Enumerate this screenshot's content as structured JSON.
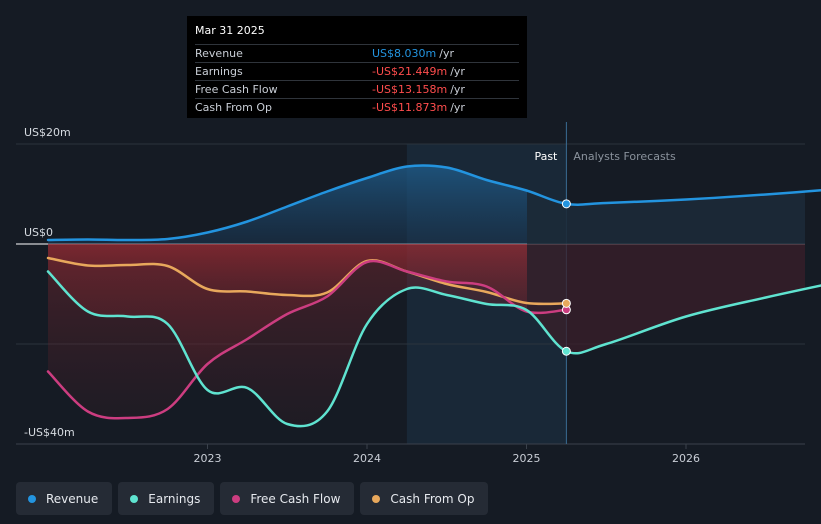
{
  "tooltip": {
    "date": "Mar 31 2025",
    "rows": [
      {
        "name": "Revenue",
        "value": "US$8.030m",
        "unit": "/yr",
        "color": "#2394df"
      },
      {
        "name": "Earnings",
        "value": "-US$21.449m",
        "unit": "/yr",
        "color": "#ff4d4d"
      },
      {
        "name": "Free Cash Flow",
        "value": "-US$13.158m",
        "unit": "/yr",
        "color": "#ff4d4d"
      },
      {
        "name": "Cash From Op",
        "value": "-US$11.873m",
        "unit": "/yr",
        "color": "#ff4d4d"
      }
    ]
  },
  "legend": [
    {
      "name": "Revenue",
      "color": "#2394df"
    },
    {
      "name": "Earnings",
      "color": "#5fe3d0"
    },
    {
      "name": "Free Cash Flow",
      "color": "#cc3d80"
    },
    {
      "name": "Cash From Op",
      "color": "#e8a85c"
    }
  ],
  "chart_data": {
    "type": "line",
    "y_tick_labels": [
      {
        "value": 20,
        "label": "US$20m"
      },
      {
        "value": 0,
        "label": "US$0"
      },
      {
        "value": -40,
        "label": "-US$40m"
      }
    ],
    "ylim": [
      -40,
      20
    ],
    "xlim": [
      2022.0,
      2026.98
    ],
    "x_ticks": [
      {
        "value": 2023,
        "label": "2023"
      },
      {
        "value": 2024,
        "label": "2024"
      },
      {
        "value": 2025,
        "label": "2025"
      },
      {
        "value": 2026,
        "label": "2026"
      }
    ],
    "past_label": "Past",
    "forecast_label": "Analysts Forecasts",
    "past_start": 2024.25,
    "forecast_start": 2025.25,
    "series": [
      {
        "name": "Revenue",
        "color": "#2394df",
        "points": [
          [
            2022.0,
            0.8
          ],
          [
            2022.25,
            0.9
          ],
          [
            2022.5,
            0.8
          ],
          [
            2022.75,
            1.0
          ],
          [
            2023.0,
            2.3
          ],
          [
            2023.25,
            4.5
          ],
          [
            2023.5,
            7.5
          ],
          [
            2023.75,
            10.5
          ],
          [
            2024.0,
            13.2
          ],
          [
            2024.25,
            15.5
          ],
          [
            2024.5,
            15.3
          ],
          [
            2024.75,
            12.8
          ],
          [
            2025.0,
            10.7
          ],
          [
            2025.25,
            8.03
          ]
        ],
        "forecast": [
          [
            2025.25,
            8.03
          ],
          [
            2025.5,
            8.2
          ],
          [
            2026.0,
            8.9
          ],
          [
            2026.5,
            9.9
          ],
          [
            2026.98,
            11.1
          ]
        ]
      },
      {
        "name": "Earnings",
        "color": "#5fe3d0",
        "points": [
          [
            2022.0,
            -5.5
          ],
          [
            2022.25,
            -13.5
          ],
          [
            2022.5,
            -14.5
          ],
          [
            2022.75,
            -16.0
          ],
          [
            2023.0,
            -29.2
          ],
          [
            2023.25,
            -28.8
          ],
          [
            2023.5,
            -36.0
          ],
          [
            2023.75,
            -33.5
          ],
          [
            2024.0,
            -16.0
          ],
          [
            2024.25,
            -9.0
          ],
          [
            2024.5,
            -10.2
          ],
          [
            2024.75,
            -12.0
          ],
          [
            2025.0,
            -13.2
          ],
          [
            2025.25,
            -21.449
          ]
        ],
        "forecast": [
          [
            2025.25,
            -21.449
          ],
          [
            2025.5,
            -20.0
          ],
          [
            2026.0,
            -14.5
          ],
          [
            2026.5,
            -10.7
          ],
          [
            2026.98,
            -7.4
          ]
        ]
      },
      {
        "name": "Free Cash Flow",
        "color": "#cc3d80",
        "points": [
          [
            2022.0,
            -25.5
          ],
          [
            2022.25,
            -33.5
          ],
          [
            2022.5,
            -34.8
          ],
          [
            2022.75,
            -33.0
          ],
          [
            2023.0,
            -24.0
          ],
          [
            2023.25,
            -19.0
          ],
          [
            2023.5,
            -14.0
          ],
          [
            2023.75,
            -10.5
          ],
          [
            2024.0,
            -3.6
          ],
          [
            2024.25,
            -5.5
          ],
          [
            2024.5,
            -7.5
          ],
          [
            2024.75,
            -8.5
          ],
          [
            2025.0,
            -13.5
          ],
          [
            2025.25,
            -13.158
          ]
        ],
        "forecast": []
      },
      {
        "name": "Cash From Op",
        "color": "#e8a85c",
        "points": [
          [
            2022.0,
            -2.8
          ],
          [
            2022.25,
            -4.3
          ],
          [
            2022.5,
            -4.2
          ],
          [
            2022.75,
            -4.4
          ],
          [
            2023.0,
            -9.0
          ],
          [
            2023.25,
            -9.5
          ],
          [
            2023.5,
            -10.2
          ],
          [
            2023.75,
            -9.7
          ],
          [
            2024.0,
            -3.4
          ],
          [
            2024.25,
            -5.5
          ],
          [
            2024.5,
            -8.0
          ],
          [
            2024.75,
            -9.6
          ],
          [
            2025.0,
            -11.8
          ],
          [
            2025.25,
            -11.873
          ]
        ],
        "forecast": []
      }
    ]
  }
}
